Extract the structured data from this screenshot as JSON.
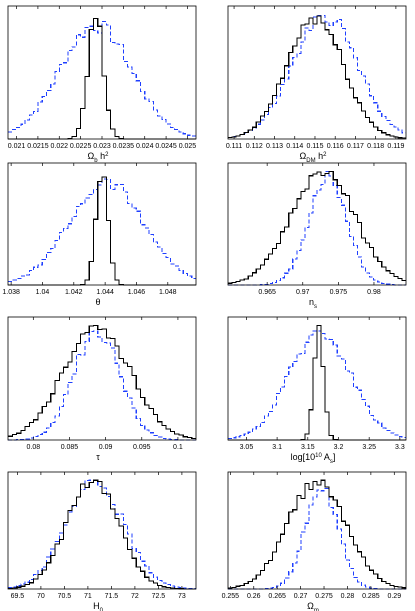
{
  "chart_data": [
    {
      "type": "line",
      "xlabel": "Ω_b h^2",
      "xlim": [
        0.0208,
        0.0252
      ],
      "ticks": [
        "0.021",
        "0.0215",
        "0.022",
        "0.0225",
        "0.023",
        "0.0235",
        "0.024",
        "0.0245",
        "0.025"
      ],
      "tick_values": [
        0.021,
        0.0215,
        0.022,
        0.0225,
        0.023,
        0.0235,
        0.024,
        0.0245,
        0.025
      ],
      "series": [
        {
          "style": "dashed",
          "color": "#1f3fff",
          "center": 0.02285,
          "sigma": 0.00085,
          "height": 0.92
        },
        {
          "style": "solid",
          "color": "#000000",
          "center": 0.02285,
          "sigma": 0.00018,
          "height": 1.0
        }
      ]
    },
    {
      "type": "line",
      "xlabel": "Ω_DM h^2",
      "xlim": [
        0.1107,
        0.1195
      ],
      "ticks": [
        "0.111",
        "0.112",
        "0.113",
        "0.114",
        "0.115",
        "0.116",
        "0.117",
        "0.118",
        "0.119"
      ],
      "tick_values": [
        0.111,
        0.112,
        0.113,
        0.114,
        0.115,
        0.116,
        0.117,
        0.118,
        0.119
      ],
      "series": [
        {
          "style": "dashed",
          "color": "#1f3fff",
          "center": 0.1155,
          "sigma": 0.0016,
          "height": 1.0
        },
        {
          "style": "solid",
          "color": "#000000",
          "center": 0.115,
          "sigma": 0.0014,
          "height": 0.98
        }
      ]
    },
    {
      "type": "line",
      "xlabel": "θ",
      "xlim": [
        1.0378,
        1.0498
      ],
      "ticks": [
        "1.038",
        "1.04",
        "1.042",
        "1.044",
        "1.046",
        "1.048"
      ],
      "tick_values": [
        1.038,
        1.04,
        1.042,
        1.044,
        1.046,
        1.048
      ],
      "series": [
        {
          "style": "dashed",
          "color": "#1f3fff",
          "center": 1.0441,
          "sigma": 0.0024,
          "height": 0.9
        },
        {
          "style": "solid",
          "color": "#000000",
          "center": 1.0438,
          "sigma": 0.00038,
          "height": 1.0
        }
      ]
    },
    {
      "type": "line",
      "xlabel": "n_s",
      "xlim": [
        0.9595,
        0.9845
      ],
      "ticks": [
        "0.965",
        "0.97",
        "0.975",
        "0.98"
      ],
      "tick_values": [
        0.965,
        0.97,
        0.975,
        0.98
      ],
      "series": [
        {
          "style": "dashed",
          "color": "#1f3fff",
          "center": 0.9735,
          "sigma": 0.0027,
          "height": 0.96
        },
        {
          "style": "solid",
          "color": "#000000",
          "center": 0.9728,
          "sigma": 0.0045,
          "height": 1.0
        }
      ]
    },
    {
      "type": "line",
      "xlabel": "τ",
      "xlim": [
        0.0765,
        0.1025
      ],
      "ticks": [
        "0.08",
        "0.085",
        "0.09",
        "0.095",
        "0.1"
      ],
      "tick_values": [
        0.08,
        0.085,
        0.09,
        0.095,
        0.1
      ],
      "series": [
        {
          "style": "dashed",
          "color": "#1f3fff",
          "center": 0.0888,
          "sigma": 0.0032,
          "height": 0.96
        },
        {
          "style": "solid",
          "color": "#000000",
          "center": 0.0888,
          "sigma": 0.0046,
          "height": 1.0
        }
      ]
    },
    {
      "type": "line",
      "xlabel": "log[10^10 A_s]",
      "xlim": [
        3.02,
        3.31
      ],
      "ticks": [
        "3.05",
        "3.1",
        "3.15",
        "3.2",
        "3.25",
        "3.3"
      ],
      "tick_values": [
        3.05,
        3.1,
        3.15,
        3.2,
        3.25,
        3.3
      ],
      "series": [
        {
          "style": "dashed",
          "color": "#1f3fff",
          "center": 3.17,
          "sigma": 0.05,
          "height": 0.95
        },
        {
          "style": "solid",
          "color": "#000000",
          "center": 3.168,
          "sigma": 0.008,
          "height": 1.0
        }
      ]
    },
    {
      "type": "line",
      "xlabel": "H_0",
      "xlim": [
        69.3,
        73.3
      ],
      "ticks": [
        "69.5",
        "70",
        "70.5",
        "71",
        "71.5",
        "72",
        "72.5",
        "73"
      ],
      "tick_values": [
        69.5,
        70,
        70.5,
        71,
        71.5,
        72,
        72.5,
        73
      ],
      "series": [
        {
          "style": "dashed",
          "color": "#1f3fff",
          "center": 71.15,
          "sigma": 0.62,
          "height": 0.98
        },
        {
          "style": "solid",
          "color": "#000000",
          "center": 71.1,
          "sigma": 0.55,
          "height": 1.0
        }
      ]
    },
    {
      "type": "line",
      "xlabel": "Ω_m",
      "xlim": [
        0.2545,
        0.2925
      ],
      "ticks": [
        "0.255",
        "0.26",
        "0.265",
        "0.27",
        "0.275",
        "0.28",
        "0.285",
        "0.29"
      ],
      "tick_values": [
        0.255,
        0.26,
        0.265,
        0.27,
        0.275,
        0.28,
        0.285,
        0.29
      ],
      "series": [
        {
          "style": "dashed",
          "color": "#1f3fff",
          "center": 0.2745,
          "sigma": 0.0035,
          "height": 0.95
        },
        {
          "style": "solid",
          "color": "#000000",
          "center": 0.2735,
          "sigma": 0.0062,
          "height": 1.0
        }
      ]
    }
  ]
}
